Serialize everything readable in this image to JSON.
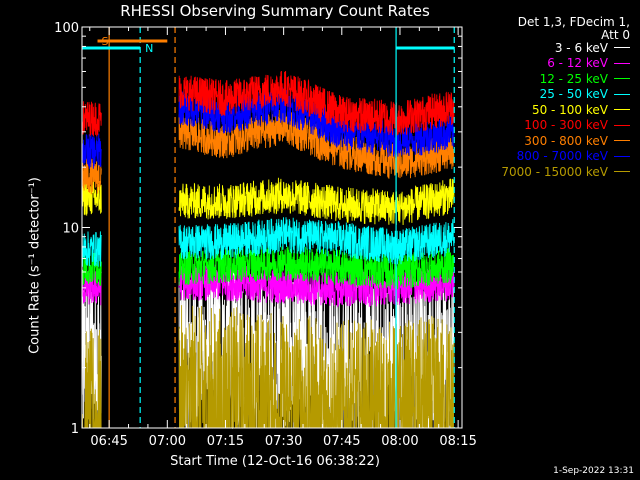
{
  "chart_data": {
    "type": "line",
    "title": "RHESSI Observing Summary Count Rates",
    "xlabel": "Start Time (12-Oct-16 06:38:22)",
    "ylabel": "Count Rate (s⁻¹ detector⁻¹)",
    "yscale": "log",
    "ylim": [
      1,
      100
    ],
    "xlim": [
      "06:38",
      "08:16"
    ],
    "yticks": [
      "1",
      "10",
      "100"
    ],
    "xticks": [
      "06:45",
      "07:00",
      "07:15",
      "07:30",
      "07:45",
      "08:00",
      "08:15"
    ],
    "info_lines": [
      "Det 1,3, FDecim 1,",
      "Att 0"
    ],
    "date_stamp": "1-Sep-2022 13:31",
    "annotations": {
      "saa_label": "S",
      "night_label": "N",
      "saa_interval": [
        "06:42",
        "07:00"
      ],
      "night_intervals": [
        [
          "06:38",
          "06:53"
        ],
        [
          "07:59",
          "08:14"
        ]
      ],
      "saa_color": "#ff7f00",
      "night_color": "#00ffff",
      "saa_lines": [
        "06:45",
        "07:02"
      ],
      "night_lines": [
        "06:53",
        "07:59",
        "08:14"
      ],
      "data_gap": [
        "06:43",
        "07:03"
      ]
    },
    "series": [
      {
        "name": "3 - 6 keV",
        "color": "#ffffff",
        "points": [
          [
            "06:38",
            2.2
          ],
          [
            "06:43",
            2.2
          ],
          [
            "07:03",
            2.3
          ],
          [
            "07:15",
            2.3
          ],
          [
            "07:30",
            2.2
          ],
          [
            "07:45",
            2.0
          ],
          [
            "08:00",
            2.0
          ],
          [
            "08:14",
            2.2
          ]
        ]
      },
      {
        "name": "6 - 12 keV",
        "color": "#ff00ff",
        "points": [
          [
            "06:38",
            5.0
          ],
          [
            "06:43",
            5.0
          ],
          [
            "07:03",
            5.3
          ],
          [
            "07:15",
            5.3
          ],
          [
            "07:30",
            5.1
          ],
          [
            "07:45",
            4.9
          ],
          [
            "08:00",
            5.0
          ],
          [
            "08:14",
            5.3
          ]
        ]
      },
      {
        "name": "12 - 25 keV",
        "color": "#00ff00",
        "points": [
          [
            "06:38",
            6.3
          ],
          [
            "06:43",
            6.3
          ],
          [
            "07:03",
            6.3
          ],
          [
            "07:15",
            6.5
          ],
          [
            "07:30",
            6.7
          ],
          [
            "07:45",
            6.3
          ],
          [
            "08:00",
            6.0
          ],
          [
            "08:14",
            6.5
          ]
        ]
      },
      {
        "name": "25 - 50 keV",
        "color": "#00ffff",
        "points": [
          [
            "06:38",
            7.8
          ],
          [
            "06:43",
            7.8
          ],
          [
            "07:03",
            8.5
          ],
          [
            "07:15",
            8.5
          ],
          [
            "07:30",
            9.2
          ],
          [
            "07:45",
            8.7
          ],
          [
            "08:00",
            8.0
          ],
          [
            "08:14",
            9.0
          ]
        ]
      },
      {
        "name": "50 - 100 keV",
        "color": "#ffff00",
        "points": [
          [
            "06:38",
            14.0
          ],
          [
            "06:43",
            14.0
          ],
          [
            "07:03",
            13.5
          ],
          [
            "07:15",
            13.5
          ],
          [
            "07:30",
            14.5
          ],
          [
            "07:45",
            13.0
          ],
          [
            "08:00",
            12.5
          ],
          [
            "08:14",
            14.5
          ]
        ]
      },
      {
        "name": "100 - 300 keV",
        "color": "#ff0000",
        "points": [
          [
            "06:38",
            35.0
          ],
          [
            "06:43",
            35.0
          ],
          [
            "07:03",
            48.0
          ],
          [
            "07:15",
            44.0
          ],
          [
            "07:30",
            50.0
          ],
          [
            "07:45",
            37.0
          ],
          [
            "08:00",
            35.0
          ],
          [
            "08:14",
            40.0
          ]
        ]
      },
      {
        "name": "300 - 800 keV",
        "color": "#ff7f00",
        "points": [
          [
            "06:38",
            18.0
          ],
          [
            "06:43",
            18.0
          ],
          [
            "07:03",
            30.0
          ],
          [
            "07:15",
            27.0
          ],
          [
            "07:30",
            32.0
          ],
          [
            "07:45",
            24.0
          ],
          [
            "08:00",
            21.0
          ],
          [
            "08:14",
            24.0
          ]
        ]
      },
      {
        "name": "800 - 7000 keV",
        "color": "#0000ff",
        "points": [
          [
            "06:38",
            24.0
          ],
          [
            "06:43",
            24.0
          ],
          [
            "07:03",
            40.0
          ],
          [
            "07:15",
            36.0
          ],
          [
            "07:30",
            41.0
          ],
          [
            "07:45",
            30.0
          ],
          [
            "08:00",
            27.0
          ],
          [
            "08:14",
            30.0
          ]
        ]
      },
      {
        "name": "7000 - 15000 keV",
        "color": "#b59a00",
        "points": [
          [
            "06:38",
            1.0
          ],
          [
            "06:43",
            1.0
          ],
          [
            "07:03",
            1.3
          ],
          [
            "07:15",
            1.3
          ],
          [
            "07:30",
            1.2
          ],
          [
            "07:45",
            1.1
          ],
          [
            "08:00",
            1.1
          ],
          [
            "08:14",
            1.2
          ]
        ]
      }
    ]
  }
}
